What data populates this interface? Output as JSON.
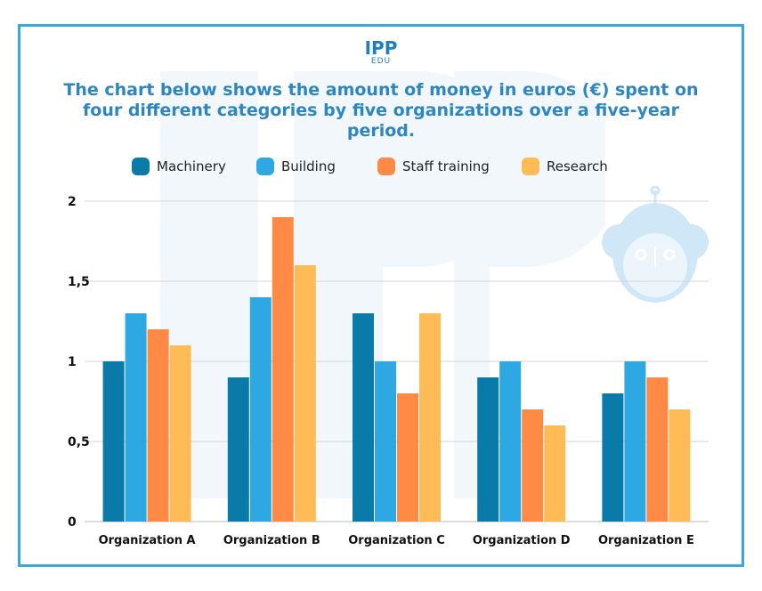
{
  "logo": {
    "main": "IPP",
    "sub": "EDU"
  },
  "chart_data": {
    "type": "bar",
    "title": "The chart below shows the amount of money in euros (€) spent on four different categories by five organizations over a five-year period.",
    "xlabel": "",
    "ylabel": "",
    "ylim": [
      0,
      2
    ],
    "yticks": [
      {
        "value": 0,
        "label": "0"
      },
      {
        "value": 0.5,
        "label": "0,5"
      },
      {
        "value": 1,
        "label": "1"
      },
      {
        "value": 1.5,
        "label": "1,5"
      },
      {
        "value": 2,
        "label": "2"
      }
    ],
    "grid": true,
    "legend_position": "top",
    "categories": [
      "Organization A",
      "Organization B",
      "Organization C",
      "Organization D",
      "Organization E"
    ],
    "series": [
      {
        "name": "Machinery",
        "color": "#0a7aa8",
        "values": [
          1.0,
          0.9,
          1.3,
          0.9,
          0.8
        ]
      },
      {
        "name": "Building",
        "color": "#2ea8e2",
        "values": [
          1.3,
          1.4,
          1.0,
          1.0,
          1.0
        ]
      },
      {
        "name": "Staff training",
        "color": "#ff8a45",
        "values": [
          1.2,
          1.9,
          0.8,
          0.7,
          0.9
        ]
      },
      {
        "name": "Research",
        "color": "#ffbb55",
        "values": [
          1.1,
          1.6,
          1.3,
          0.6,
          0.7
        ]
      }
    ]
  }
}
